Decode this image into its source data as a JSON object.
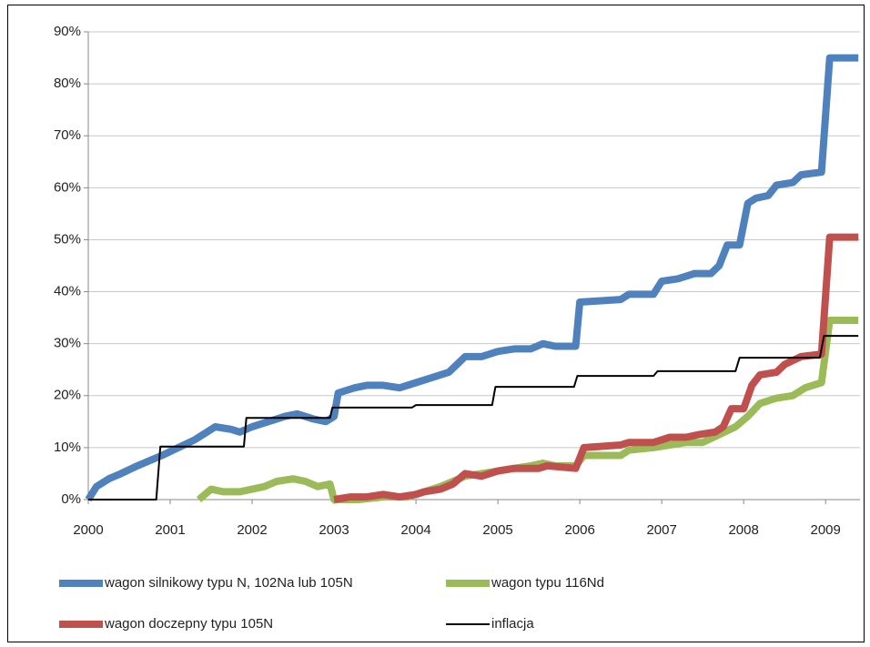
{
  "chart_data": {
    "type": "line",
    "xlim": [
      2000,
      2009.42
    ],
    "xticks": [
      2000,
      2001,
      2002,
      2003,
      2004,
      2005,
      2006,
      2007,
      2008,
      2009
    ],
    "ylim": [
      0,
      90
    ],
    "yticks": [
      {
        "value": 0,
        "label": "0%"
      },
      {
        "value": 10,
        "label": "10%"
      },
      {
        "value": 20,
        "label": "20%"
      },
      {
        "value": 30,
        "label": "30%"
      },
      {
        "value": 40,
        "label": "40%"
      },
      {
        "value": 50,
        "label": "50%"
      },
      {
        "value": 60,
        "label": "60%"
      },
      {
        "value": 70,
        "label": "70%"
      },
      {
        "value": 80,
        "label": "80%"
      },
      {
        "value": 90,
        "label": "90%"
      }
    ],
    "grid": true,
    "legend": "bottom",
    "series": [
      {
        "name": "wagon silnikowy typu N, 102Na lub 105N",
        "color": "#4f81bd",
        "width": 8,
        "x": [
          2000,
          2000.1,
          2000.25,
          2000.4,
          2000.6,
          2000.75,
          2000.9,
          2001.1,
          2001.3,
          2001.45,
          2001.55,
          2001.75,
          2001.85,
          2002.0,
          2002.2,
          2002.4,
          2002.55,
          2002.75,
          2002.9,
          2003.0,
          2003.05,
          2003.25,
          2003.4,
          2003.6,
          2003.8,
          2004.0,
          2004.2,
          2004.4,
          2004.6,
          2004.8,
          2005.0,
          2005.2,
          2005.4,
          2005.55,
          2005.7,
          2005.95,
          2006.0,
          2006.5,
          2006.6,
          2006.9,
          2007.0,
          2007.2,
          2007.4,
          2007.6,
          2007.7,
          2007.8,
          2007.95,
          2008.05,
          2008.15,
          2008.3,
          2008.4,
          2008.6,
          2008.7,
          2008.95,
          2009.05,
          2009.4
        ],
        "values": [
          0,
          2.5,
          4,
          5,
          6.5,
          7.5,
          8.5,
          10,
          11.5,
          13,
          14,
          13.5,
          13,
          14,
          15,
          16,
          16.5,
          15.5,
          15,
          16,
          20.5,
          21.5,
          22,
          22,
          21.5,
          22.5,
          23.5,
          24.5,
          27.5,
          27.5,
          28.5,
          29,
          29,
          30,
          29.5,
          29.5,
          38,
          38.5,
          39.5,
          39.5,
          42,
          42.5,
          43.5,
          43.5,
          45,
          49,
          49,
          57,
          58,
          58.5,
          60.5,
          61,
          62.5,
          63,
          85,
          85
        ]
      },
      {
        "name": "wagon typu 116Nd",
        "color": "#9bbb59",
        "width": 8,
        "x": [
          2001.35,
          2001.5,
          2001.65,
          2001.85,
          2002.0,
          2002.15,
          2002.3,
          2002.5,
          2002.65,
          2002.8,
          2002.95,
          2003.0,
          2003.3,
          2003.6,
          2003.9,
          2004.1,
          2004.3,
          2004.6,
          2004.8,
          2005.0,
          2005.2,
          2005.4,
          2005.55,
          2005.7,
          2005.95,
          2006.05,
          2006.5,
          2006.6,
          2006.9,
          2007.1,
          2007.3,
          2007.5,
          2007.7,
          2007.9,
          2008.05,
          2008.2,
          2008.4,
          2008.6,
          2008.75,
          2008.95,
          2009.05,
          2009.4
        ],
        "values": [
          0,
          2,
          1.5,
          1.5,
          2,
          2.5,
          3.5,
          4,
          3.5,
          2.5,
          3,
          0,
          0,
          0.5,
          0.5,
          1.5,
          2.5,
          4.5,
          5,
          5.5,
          6,
          6.5,
          7,
          6.5,
          6.5,
          8.5,
          8.5,
          9.5,
          10,
          10.5,
          11,
          11,
          12.5,
          14,
          16,
          18.5,
          19.5,
          20,
          21.5,
          22.5,
          34.5,
          34.5
        ]
      },
      {
        "name": "wagon doczepny typu 105N",
        "color": "#c0504d",
        "width": 8,
        "x": [
          2003.0,
          2003.2,
          2003.4,
          2003.6,
          2003.8,
          2004.0,
          2004.1,
          2004.3,
          2004.45,
          2004.6,
          2004.8,
          2005.0,
          2005.2,
          2005.5,
          2005.6,
          2005.95,
          2006.05,
          2006.5,
          2006.6,
          2006.9,
          2007.1,
          2007.3,
          2007.45,
          2007.65,
          2007.75,
          2007.85,
          2008.0,
          2008.1,
          2008.2,
          2008.4,
          2008.5,
          2008.7,
          2008.95,
          2009.05,
          2009.4
        ],
        "values": [
          0,
          0.5,
          0.5,
          1,
          0.5,
          1,
          1.5,
          2,
          3,
          5,
          4.5,
          5.5,
          6,
          6,
          6.5,
          6,
          10,
          10.5,
          11,
          11,
          12,
          12,
          12.5,
          13,
          14,
          17.5,
          17.5,
          22,
          24,
          24.5,
          26,
          27.5,
          28,
          50.5,
          50.5
        ]
      },
      {
        "name": "inflacja",
        "color": "#000000",
        "width": 2,
        "x": [
          2000,
          2000.83,
          2000.88,
          2001.9,
          2001.93,
          2002.95,
          2002.98,
          2003.95,
          2004.0,
          2004.93,
          2004.97,
          2005.93,
          2005.97,
          2006.9,
          2006.95,
          2007.9,
          2007.95,
          2008.93,
          2008.98,
          2009.4
        ],
        "values": [
          0,
          0,
          10.2,
          10.2,
          15.7,
          15.7,
          17.7,
          17.7,
          18.2,
          18.2,
          21.7,
          21.7,
          23.8,
          23.8,
          24.7,
          24.7,
          27.3,
          27.3,
          31.5,
          31.5
        ]
      }
    ]
  }
}
